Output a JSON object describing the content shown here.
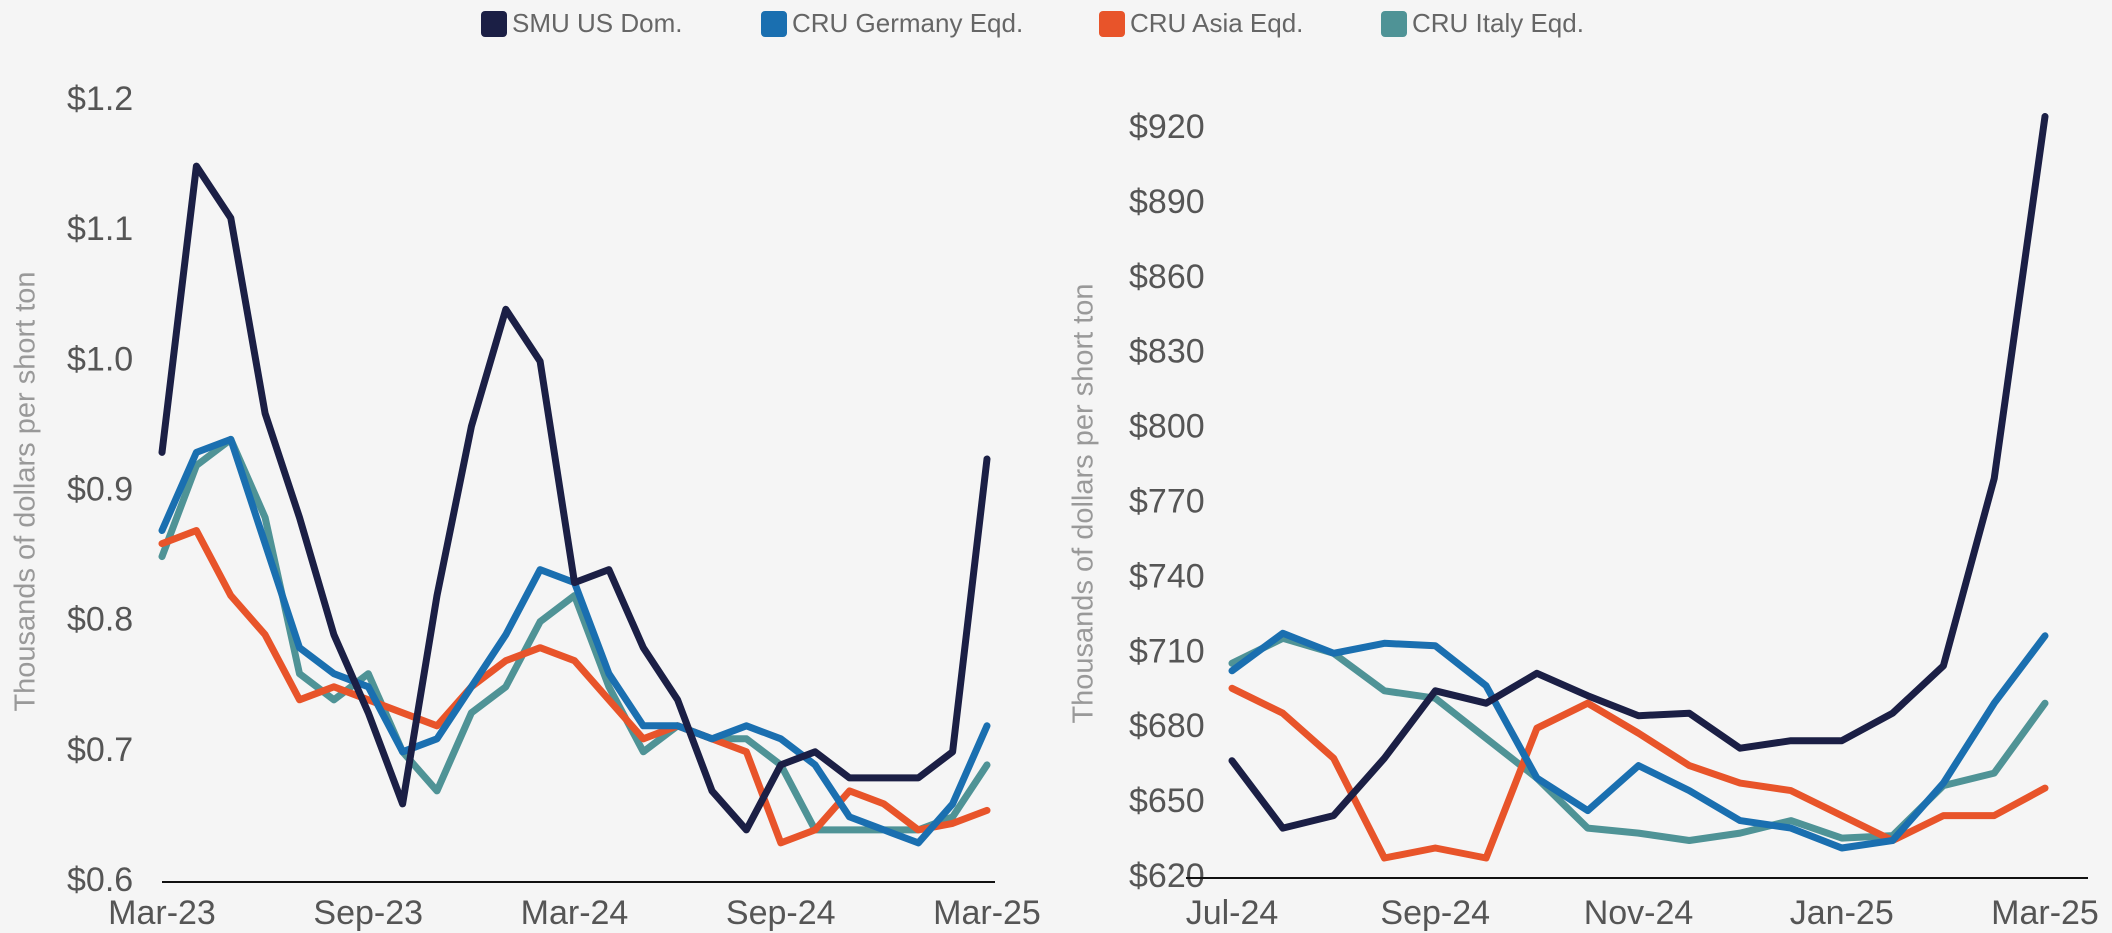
{
  "chart_data": [
    {
      "type": "line",
      "ylabel": "Thousands of dollars per short ton",
      "categories": [
        "Mar-23",
        null,
        null,
        null,
        null,
        null,
        "Sep-23",
        null,
        null,
        null,
        null,
        null,
        "Mar-24",
        null,
        null,
        null,
        null,
        null,
        "Sep-24",
        null,
        null,
        null,
        null,
        null,
        "Mar-25"
      ],
      "series": [
        {
          "name": "SMU US Dom.",
          "color": "#1b1f45",
          "values": [
            0.93,
            1.15,
            1.11,
            0.96,
            0.88,
            0.79,
            0.73,
            0.66,
            0.82,
            0.95,
            1.04,
            1.0,
            0.83,
            0.84,
            0.78,
            0.74,
            0.67,
            0.64,
            0.69,
            0.7,
            0.68,
            0.68,
            0.68,
            0.7,
            0.925
          ]
        },
        {
          "name": "CRU Germany Eqd.",
          "color": "#1a6fb0",
          "values": [
            0.87,
            0.93,
            0.94,
            0.86,
            0.78,
            0.76,
            0.75,
            0.7,
            0.71,
            0.75,
            0.79,
            0.84,
            0.83,
            0.76,
            0.72,
            0.72,
            0.71,
            0.72,
            0.71,
            0.69,
            0.65,
            0.64,
            0.63,
            0.66,
            0.72
          ]
        },
        {
          "name": "CRU Asia Eqd.",
          "color": "#e8542a",
          "values": [
            0.86,
            0.87,
            0.82,
            0.79,
            0.74,
            0.75,
            0.74,
            0.73,
            0.72,
            0.75,
            0.77,
            0.78,
            0.77,
            0.74,
            0.71,
            0.72,
            0.71,
            0.7,
            0.63,
            0.64,
            0.67,
            0.66,
            0.64,
            0.645,
            0.655
          ]
        },
        {
          "name": "CRU Italy Eqd.",
          "color": "#4f9396",
          "values": [
            0.85,
            0.92,
            0.94,
            0.88,
            0.76,
            0.74,
            0.76,
            0.7,
            0.67,
            0.73,
            0.75,
            0.8,
            0.82,
            0.75,
            0.7,
            0.72,
            0.71,
            0.71,
            0.69,
            0.64,
            0.64,
            0.64,
            0.64,
            0.65,
            0.69
          ]
        }
      ],
      "ylim": [
        0.6,
        1.2
      ],
      "yticks": [
        {
          "value": 0.6,
          "label": "$0.6"
        },
        {
          "value": 0.7,
          "label": "$0.7"
        },
        {
          "value": 0.8,
          "label": "$0.8"
        },
        {
          "value": 0.9,
          "label": "$0.9"
        },
        {
          "value": 1.0,
          "label": "$1.0"
        },
        {
          "value": 1.1,
          "label": "$1.1"
        },
        {
          "value": 1.2,
          "label": "$1.2"
        }
      ],
      "grid": false
    },
    {
      "type": "line",
      "ylabel": "Thousands of dollars per short ton",
      "categories": [
        "Jul-24",
        null,
        null,
        null,
        "Sep-24",
        null,
        null,
        null,
        "Nov-24",
        null,
        null,
        null,
        "Jan-25",
        null,
        null,
        null,
        "Mar-25"
      ],
      "series": [
        {
          "color": "#1b1f45",
          "values": [
            667,
            640,
            645,
            668,
            695,
            690,
            702,
            693,
            685,
            686,
            672,
            675,
            675,
            686,
            705,
            780,
            925
          ]
        },
        {
          "color": "#1a6fb0",
          "values": [
            703,
            718,
            710,
            714,
            713,
            697,
            660,
            647,
            665,
            655,
            643,
            640,
            632,
            635,
            658,
            690,
            717
          ]
        },
        {
          "color": "#e8542a",
          "values": [
            696,
            686,
            668,
            628,
            632,
            628,
            680,
            690,
            678,
            665,
            658,
            655,
            645,
            635,
            645,
            645,
            656
          ]
        },
        {
          "color": "#4f9396",
          "values": [
            706,
            716,
            710,
            695,
            692,
            676,
            660,
            640,
            638,
            635,
            638,
            643,
            636,
            637,
            657,
            662,
            690
          ]
        }
      ],
      "ylim": [
        620,
        920
      ],
      "yticks": [
        {
          "value": 620,
          "label": "$620"
        },
        {
          "value": 650,
          "label": "$650"
        },
        {
          "value": 680,
          "label": "$680"
        },
        {
          "value": 710,
          "label": "$710"
        },
        {
          "value": 740,
          "label": "$740"
        },
        {
          "value": 770,
          "label": "$770"
        },
        {
          "value": 800,
          "label": "$800"
        },
        {
          "value": 830,
          "label": "$830"
        },
        {
          "value": 860,
          "label": "$860"
        },
        {
          "value": 890,
          "label": "$890"
        },
        {
          "value": 920,
          "label": "$920"
        }
      ],
      "grid": false
    }
  ]
}
